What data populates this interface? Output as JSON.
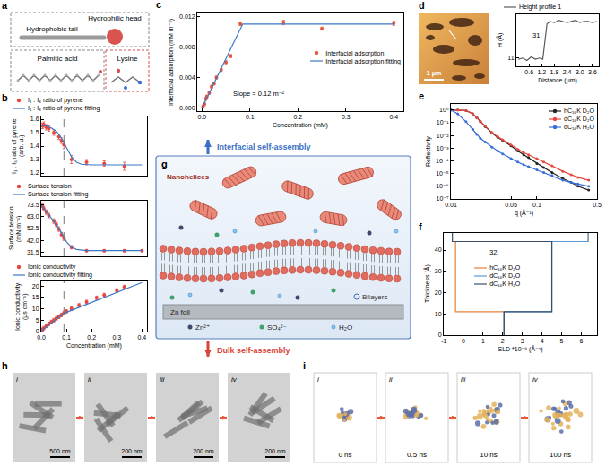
{
  "chart_data": [
    {
      "panel": "b",
      "type": "scatter",
      "y_label": "I₁ : I₃ ratio of pyrene (arb. u.)",
      "xlim": [
        0,
        0.42
      ],
      "ylim": [
        1.18,
        1.62
      ],
      "yticks": [
        1.2,
        1.3,
        1.4,
        1.5,
        1.6
      ],
      "tick_labels": "y",
      "legend": "top",
      "vline": 0.09,
      "series": [
        {
          "name": "I₁ : I₃ ratio of pyrene",
          "type": "scatter",
          "color": "#e8473e",
          "marker": "circle",
          "x": [
            0.005,
            0.01,
            0.02,
            0.03,
            0.05,
            0.07,
            0.08,
            0.09,
            0.12,
            0.18,
            0.25,
            0.33
          ],
          "values": [
            1.55,
            1.56,
            1.54,
            1.53,
            1.5,
            1.47,
            1.44,
            1.41,
            1.3,
            1.28,
            1.27,
            1.25
          ],
          "errors": [
            0.02,
            0.02,
            0.02,
            0.02,
            0.02,
            0.02,
            0.02,
            0.03,
            0.03,
            0.02,
            0.02,
            0.03
          ]
        },
        {
          "name": "I₁ : I₃ ratio of pyrene fitting",
          "type": "line",
          "color": "#3b78c8",
          "line_style": "solid",
          "x": [
            0,
            0.02,
            0.04,
            0.06,
            0.08,
            0.1,
            0.12,
            0.14,
            0.16,
            0.2,
            0.3,
            0.4
          ],
          "values": [
            1.555,
            1.55,
            1.535,
            1.51,
            1.46,
            1.39,
            1.32,
            1.28,
            1.265,
            1.26,
            1.26,
            1.26
          ]
        }
      ]
    },
    {
      "type": "scatter",
      "y_label": "Surface tension (mN m⁻¹)",
      "xlim": [
        0,
        0.42
      ],
      "ylim": [
        28,
        77
      ],
      "yticks": [
        31.5,
        {
          "value": 42,
          "label": "42.0"
        },
        52.5,
        {
          "value": 63,
          "label": "63.0"
        },
        73.5
      ],
      "tick_labels": "y",
      "legend": "top",
      "vline": 0.09,
      "series": [
        {
          "name": "Surface tension",
          "type": "scatter",
          "color": "#e8473e",
          "marker": "circle",
          "x": [
            0.005,
            0.01,
            0.02,
            0.03,
            0.05,
            0.06,
            0.07,
            0.08,
            0.09,
            0.12,
            0.18,
            0.25,
            0.33,
            0.4
          ],
          "values": [
            72.5,
            70,
            67,
            64,
            59,
            56,
            52,
            47,
            44,
            36,
            33,
            33,
            33,
            33
          ],
          "errors": [
            1.5,
            2,
            2,
            2,
            2,
            2,
            2,
            2,
            2,
            1.5,
            1,
            1,
            1,
            1
          ]
        },
        {
          "name": "Surface tension fitting",
          "type": "line",
          "color": "#3b78c8",
          "line_style": "solid",
          "x": [
            0,
            0.02,
            0.04,
            0.06,
            0.08,
            0.1,
            0.12,
            0.14,
            0.18,
            0.25,
            0.4
          ],
          "values": [
            73,
            67.5,
            62,
            56,
            49,
            41,
            36,
            34,
            33,
            33,
            33
          ]
        }
      ]
    },
    {
      "type": "scatter",
      "x_label": "Concentration (mM)",
      "y_label": "Ionic conductivity (μs cm⁻¹)",
      "xlim": [
        0,
        0.42
      ],
      "ylim": [
        0,
        22
      ],
      "xticks": [
        {
          "value": 0,
          "label": "0.0"
        },
        0.1,
        0.2,
        0.3,
        0.4
      ],
      "yticks": [
        0,
        5,
        10,
        15,
        20
      ],
      "legend": "top",
      "vline": 0.09,
      "series": [
        {
          "name": "Ionic conductivity",
          "type": "scatter",
          "color": "#e8473e",
          "marker": "circle",
          "x": [
            0.005,
            0.01,
            0.02,
            0.03,
            0.04,
            0.05,
            0.06,
            0.07,
            0.08,
            0.09,
            0.1,
            0.12,
            0.15,
            0.18,
            0.22,
            0.25,
            0.3,
            0.33
          ],
          "values": [
            0.8,
            1.5,
            2.5,
            3.3,
            4.2,
            5,
            5.8,
            6.5,
            7.3,
            8.2,
            8.8,
            10,
            11.5,
            13,
            14.8,
            16,
            18,
            19.5
          ],
          "errors": [
            0.8,
            0.8,
            0.8,
            0.8,
            0.8,
            0.8,
            0.8,
            0.8,
            0.8,
            0.8,
            0.8,
            0.8,
            0.8,
            0.8,
            0.8,
            0.8,
            0.8,
            0.8
          ]
        },
        {
          "name": "Ionic conductivity fitting",
          "type": "line",
          "color": "#3b78c8",
          "line_style": "solid",
          "x": [
            0,
            0.09,
            0.4
          ],
          "values": [
            0.3,
            8,
            21.5
          ]
        }
      ]
    },
    {
      "panel": "c",
      "type": "scatter",
      "x_label": "Concentration (mM)",
      "y_label": "Interfacial adsorption (mM m⁻²)",
      "xlim": [
        -0.01,
        0.42
      ],
      "ylim": [
        -0.0004,
        0.0125
      ],
      "xticks": [
        {
          "value": 0,
          "label": "0.0"
        },
        0.1,
        0.2,
        0.3,
        0.4
      ],
      "yticks": [
        {
          "value": 0,
          "label": "0.000"
        },
        0.004,
        0.008,
        0.012
      ],
      "legend": "right",
      "annotations": [
        "Slope = 0.12 m⁻²"
      ],
      "series": [
        {
          "name": "Interfacial adsorption",
          "type": "scatter",
          "color": "#e8573a",
          "marker": "circle",
          "x": [
            0.002,
            0.005,
            0.008,
            0.01,
            0.015,
            0.02,
            0.025,
            0.03,
            0.04,
            0.05,
            0.06,
            0.08,
            0.17,
            0.25,
            0.4
          ],
          "values": [
            0.0002,
            0.0005,
            0.0012,
            0.0015,
            0.002,
            0.0028,
            0.0032,
            0.004,
            0.005,
            0.006,
            0.0068,
            0.011,
            0.0112,
            0.0104,
            0.0111
          ],
          "errors": [
            0.0002,
            0.0002,
            0.0002,
            0.0002,
            0.0002,
            0.0002,
            0.0002,
            0.0002,
            0.0002,
            0.0002,
            0.0002,
            0.0002,
            0.0003,
            0.0002,
            0.0003
          ]
        },
        {
          "name": "Interfacial adsorption fitting",
          "type": "line",
          "color": "#3b78c8",
          "line_style": "solid",
          "x": [
            0,
            0.085,
            0.4
          ],
          "values": [
            0,
            0.011,
            0.011
          ]
        }
      ]
    },
    {
      "type": "line",
      "x_label": "Distance (μm)",
      "y_label": "H (Å)",
      "xlim": [
        0,
        3.9
      ],
      "ylim": [
        4,
        48
      ],
      "xticks": [
        0.6,
        1.2,
        1.8,
        2.4,
        {
          "value": 3,
          "label": "3.0"
        },
        3.6
      ],
      "yticks": [
        11
      ],
      "legend": "top",
      "annotations": [
        "31"
      ],
      "series": [
        {
          "name": "Height profile 1",
          "type": "line",
          "color": "#5a5a5a",
          "line_style": "solid",
          "x": [
            0.1,
            0.3,
            0.5,
            0.7,
            0.9,
            1.1,
            1.25,
            1.35,
            1.45,
            1.6,
            1.8,
            2,
            2.2,
            2.4,
            2.6,
            2.8,
            3,
            3.2,
            3.4,
            3.6,
            3.8
          ],
          "values": [
            10,
            11,
            9,
            12,
            10,
            11,
            10,
            25,
            40,
            42,
            41,
            43,
            42,
            41,
            42,
            43,
            41,
            42,
            42,
            41,
            42
          ]
        }
      ]
    },
    {
      "panel": "e",
      "type": "line",
      "log": true,
      "x_label": "q (Å⁻¹)",
      "y_label": "Reflectivity",
      "xlim": [
        0.01,
        0.5
      ],
      "ylim": [
        1e-07,
        3
      ],
      "xticks": [
        0.01,
        0.05,
        0.1,
        0.5
      ],
      "yticks": [
        {
          "value": 1e-07,
          "label": "10⁻⁷"
        },
        {
          "value": 1e-06,
          "label": "10⁻⁶"
        },
        {
          "value": 1e-05,
          "label": "10⁻⁵"
        },
        {
          "value": 0.0001,
          "label": "10⁻⁴"
        },
        {
          "value": 0.001,
          "label": "10⁻³"
        },
        {
          "value": 0.01,
          "label": "10⁻²"
        },
        {
          "value": 0.1,
          "label": "10⁻¹"
        },
        {
          "value": 1,
          "label": "10⁰"
        }
      ],
      "legend": "top right",
      "series": [
        {
          "name": "hC₁₆K D₂O",
          "type": "line",
          "color": "#222222",
          "marker": "circle",
          "line_style": "solid",
          "x": [
            0.01,
            0.012,
            0.015,
            0.018,
            0.02,
            0.022,
            0.025,
            0.03,
            0.035,
            0.04,
            0.05,
            0.06,
            0.07,
            0.08,
            0.1,
            0.12,
            0.15,
            0.2,
            0.25,
            0.3,
            0.4
          ],
          "values": [
            1,
            1,
            0.9,
            0.5,
            0.25,
            0.12,
            0.05,
            0.015,
            0.007,
            0.004,
            0.0015,
            0.0006,
            0.0003,
            0.00018,
            6e-05,
            3e-05,
            1.2e-05,
            4e-06,
            2e-06,
            1e-06,
            5e-07
          ]
        },
        {
          "name": "dC₁₆K D₂O",
          "type": "line",
          "color": "#e8473e",
          "marker": "circle",
          "line_style": "solid",
          "x": [
            0.01,
            0.012,
            0.015,
            0.018,
            0.02,
            0.022,
            0.025,
            0.03,
            0.035,
            0.04,
            0.05,
            0.06,
            0.07,
            0.08,
            0.1,
            0.12,
            0.15,
            0.2,
            0.25,
            0.3,
            0.4
          ],
          "values": [
            1,
            1,
            0.9,
            0.5,
            0.26,
            0.13,
            0.055,
            0.017,
            0.008,
            0.0045,
            0.0018,
            0.0008,
            0.00045,
            0.0003,
            0.00015,
            8e-05,
            4e-05,
            1.5e-05,
            8e-06,
            5e-06,
            3e-06
          ]
        },
        {
          "name": "dC₁₆K H₂O",
          "type": "line",
          "color": "#3a6fd8",
          "marker": "circle",
          "line_style": "solid",
          "x": [
            0.01,
            0.012,
            0.015,
            0.018,
            0.02,
            0.022,
            0.025,
            0.03,
            0.035,
            0.04,
            0.05,
            0.06,
            0.07,
            0.08,
            0.1,
            0.12,
            0.15,
            0.2,
            0.25,
            0.3,
            0.4
          ],
          "values": [
            1,
            0.5,
            0.12,
            0.03,
            0.012,
            0.006,
            0.003,
            0.0012,
            0.0006,
            0.00035,
            0.00015,
            8e-05,
            5e-05,
            3.5e-05,
            2e-05,
            1.2e-05,
            7e-06,
            3e-06,
            2e-06,
            1.5e-06,
            1e-06
          ]
        }
      ]
    },
    {
      "panel": "f",
      "type": "line",
      "x_label": "SLD *10⁻⁶ (Å⁻²)",
      "y_label": "Thickness (Å)",
      "xlim": [
        -1,
        6.8
      ],
      "ylim": [
        0,
        48
      ],
      "xticks": [
        -1,
        0,
        1,
        2,
        3,
        4,
        5,
        6
      ],
      "yticks": [
        0,
        10,
        20,
        30,
        40
      ],
      "legend": "center",
      "annotations": [
        "32"
      ],
      "series": [
        {
          "name": "hC₁₆K D₂O",
          "type": "line",
          "color": "#e8803a",
          "line_style": "solid",
          "x": [
            2.07,
            2.07,
            -0.4,
            -0.4,
            6.35,
            6.35
          ],
          "values": [
            0,
            11,
            11,
            44,
            44,
            48
          ]
        },
        {
          "name": "dC₁₆K D₂O",
          "type": "line",
          "color": "#5a9bd5",
          "line_style": "solid",
          "x": [
            2.07,
            2.07,
            4.5,
            4.5,
            6.35,
            6.35
          ],
          "values": [
            0,
            11,
            11,
            44,
            44,
            48
          ]
        },
        {
          "name": "dC₁₆K H₂O",
          "type": "line",
          "color": "#3a4f6b",
          "line_style": "solid",
          "x": [
            2.07,
            2.07,
            4.5,
            4.5,
            -0.56,
            -0.56
          ],
          "values": [
            0,
            11,
            11,
            44,
            44,
            48
          ]
        }
      ]
    }
  ],
  "diagram": {
    "a": {
      "letter": "a",
      "hydrophilic_head": "Hydrophilic head",
      "hydrophobic_tail": "Hydrophobic tail",
      "palmitic_acid": "Palmitic acid",
      "lysine": "Lysine"
    },
    "d": {
      "letter": "d",
      "scale_bar": "1 μm"
    },
    "g": {
      "letter": "g",
      "top_arrow": "Interfacial self-assembly",
      "bottom_arrow": "Bulk self-assembly",
      "nanohelices": "Nanohelices",
      "bilayers": "Bilayers",
      "foil": "Zn foil",
      "ions": [
        "Zn²⁺",
        "SO₄²⁻",
        "H₂O"
      ]
    },
    "h": {
      "letter": "h",
      "images": [
        {
          "label": "i",
          "scale_bar": "500 nm"
        },
        {
          "label": "ii",
          "scale_bar": "200 nm"
        },
        {
          "label": "iii",
          "scale_bar": "200 nm"
        },
        {
          "label": "iv",
          "scale_bar": "200 nm"
        }
      ]
    },
    "i": {
      "letter": "i",
      "frames": [
        {
          "label": "i",
          "time": "0 ns"
        },
        {
          "label": "ii",
          "time": "0.5 ns"
        },
        {
          "label": "iii",
          "time": "10 ns"
        },
        {
          "label": "iv",
          "time": "100 ns"
        }
      ]
    }
  }
}
